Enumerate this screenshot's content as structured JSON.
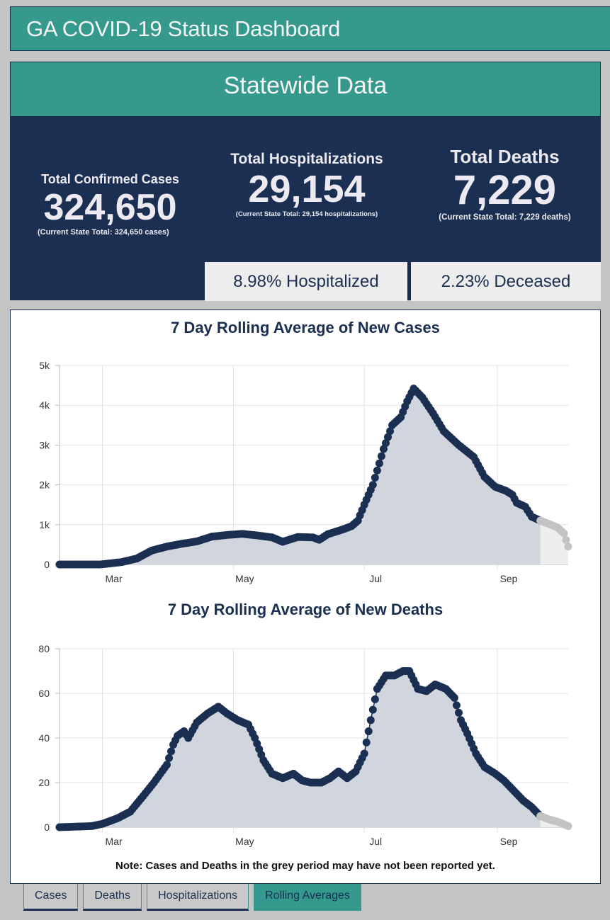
{
  "header": {
    "title": "GA COVID-19 Status Dashboard"
  },
  "statewide": {
    "title": "Statewide Data",
    "cases": {
      "label": "Total Confirmed Cases",
      "value": "324,650",
      "sub": "(Current State Total: 324,650 cases)"
    },
    "hospitalizations": {
      "label": "Total Hospitalizations",
      "value": "29,154",
      "sub": "(Current State Total: 29,154 hospitalizations)"
    },
    "deaths": {
      "label": "Total Deaths",
      "value": "7,229",
      "sub": "(Current State Total: 7,229 deaths)"
    },
    "pct_hospitalized": "8.98% Hospitalized",
    "pct_deceased": "2.23% Deceased"
  },
  "colors": {
    "teal": "#35998b",
    "navy": "#1b2f52",
    "area_fill": "#d1d5dd",
    "grey_points": "#c3c3c3",
    "grey_area": "#eeeeee"
  },
  "note": "Note: Cases and Deaths in the grey period may have not been reported yet.",
  "tabs": [
    {
      "label": "Cases",
      "active": false
    },
    {
      "label": "Deaths",
      "active": false
    },
    {
      "label": "Hospitalizations",
      "active": false
    },
    {
      "label": "Rolling Averages",
      "active": true
    }
  ],
  "chart_data": [
    {
      "type": "area",
      "title": "7 Day Rolling Average of New Cases",
      "xlabel": "",
      "ylabel": "",
      "x_range": [
        "2020-02-10",
        "2020-10-04"
      ],
      "ylim": [
        0,
        5000
      ],
      "y_ticks": [
        0,
        1000,
        2000,
        3000,
        4000,
        5000
      ],
      "y_tick_labels": [
        "0",
        "1k",
        "2k",
        "3k",
        "4k",
        "5k"
      ],
      "x_ticks": [
        "2020-03-01",
        "2020-05-01",
        "2020-07-01",
        "2020-09-01"
      ],
      "x_tick_labels": [
        "Mar",
        "May",
        "Jul",
        "Sep"
      ],
      "grid": true,
      "grey_period_start": "2020-09-21",
      "series": [
        {
          "name": "7 day rolling average of new cases",
          "points": [
            [
              "2020-02-10",
              0
            ],
            [
              "2020-02-29",
              0
            ],
            [
              "2020-03-10",
              60
            ],
            [
              "2020-03-17",
              150
            ],
            [
              "2020-03-24",
              350
            ],
            [
              "2020-03-31",
              450
            ],
            [
              "2020-04-07",
              520
            ],
            [
              "2020-04-14",
              580
            ],
            [
              "2020-04-21",
              700
            ],
            [
              "2020-04-28",
              740
            ],
            [
              "2020-05-05",
              770
            ],
            [
              "2020-05-12",
              730
            ],
            [
              "2020-05-19",
              680
            ],
            [
              "2020-05-24",
              570
            ],
            [
              "2020-05-31",
              690
            ],
            [
              "2020-06-07",
              680
            ],
            [
              "2020-06-10",
              620
            ],
            [
              "2020-06-14",
              760
            ],
            [
              "2020-06-21",
              880
            ],
            [
              "2020-06-25",
              960
            ],
            [
              "2020-06-28",
              1100
            ],
            [
              "2020-07-01",
              1500
            ],
            [
              "2020-07-05",
              2000
            ],
            [
              "2020-07-10",
              2900
            ],
            [
              "2020-07-14",
              3500
            ],
            [
              "2020-07-18",
              3700
            ],
            [
              "2020-07-21",
              4100
            ],
            [
              "2020-07-24",
              4420
            ],
            [
              "2020-07-28",
              4200
            ],
            [
              "2020-08-02",
              3800
            ],
            [
              "2020-08-07",
              3350
            ],
            [
              "2020-08-14",
              3000
            ],
            [
              "2020-08-21",
              2700
            ],
            [
              "2020-08-26",
              2200
            ],
            [
              "2020-08-31",
              1950
            ],
            [
              "2020-09-05",
              1850
            ],
            [
              "2020-09-08",
              1750
            ],
            [
              "2020-09-10",
              1550
            ],
            [
              "2020-09-14",
              1450
            ],
            [
              "2020-09-17",
              1200
            ],
            [
              "2020-09-21",
              1100
            ],
            [
              "2020-09-25",
              1020
            ],
            [
              "2020-09-29",
              930
            ],
            [
              "2020-10-02",
              780
            ],
            [
              "2020-10-04",
              450
            ]
          ]
        }
      ]
    },
    {
      "type": "area",
      "title": "7 Day Rolling Average of New Deaths",
      "xlabel": "",
      "ylabel": "",
      "x_range": [
        "2020-02-10",
        "2020-10-04"
      ],
      "ylim": [
        0,
        80
      ],
      "y_ticks": [
        0,
        20,
        40,
        60,
        80
      ],
      "y_tick_labels": [
        "0",
        "20",
        "40",
        "60",
        "80"
      ],
      "x_ticks": [
        "2020-03-01",
        "2020-05-01",
        "2020-07-01",
        "2020-09-01"
      ],
      "x_tick_labels": [
        "Mar",
        "May",
        "Jul",
        "Sep"
      ],
      "grid": true,
      "grey_period_start": "2020-09-21",
      "series": [
        {
          "name": "7 day rolling average of new deaths",
          "points": [
            [
              "2020-02-10",
              0
            ],
            [
              "2020-02-25",
              0.5
            ],
            [
              "2020-03-01",
              1.5
            ],
            [
              "2020-03-08",
              4
            ],
            [
              "2020-03-14",
              7
            ],
            [
              "2020-03-20",
              14
            ],
            [
              "2020-03-25",
              20
            ],
            [
              "2020-03-31",
              28
            ],
            [
              "2020-04-03",
              37
            ],
            [
              "2020-04-05",
              41
            ],
            [
              "2020-04-08",
              43
            ],
            [
              "2020-04-10",
              40
            ],
            [
              "2020-04-14",
              47
            ],
            [
              "2020-04-19",
              51
            ],
            [
              "2020-04-24",
              54
            ],
            [
              "2020-04-28",
              51
            ],
            [
              "2020-05-03",
              48
            ],
            [
              "2020-05-08",
              46
            ],
            [
              "2020-05-11",
              40
            ],
            [
              "2020-05-15",
              30
            ],
            [
              "2020-05-19",
              24
            ],
            [
              "2020-05-24",
              22
            ],
            [
              "2020-05-29",
              24
            ],
            [
              "2020-06-02",
              21
            ],
            [
              "2020-06-06",
              20
            ],
            [
              "2020-06-11",
              20
            ],
            [
              "2020-06-15",
              22
            ],
            [
              "2020-06-19",
              25
            ],
            [
              "2020-06-23",
              22
            ],
            [
              "2020-06-27",
              25
            ],
            [
              "2020-07-01",
              33
            ],
            [
              "2020-07-04",
              48
            ],
            [
              "2020-07-07",
              62
            ],
            [
              "2020-07-11",
              68
            ],
            [
              "2020-07-15",
              68
            ],
            [
              "2020-07-19",
              70
            ],
            [
              "2020-07-22",
              70
            ],
            [
              "2020-07-26",
              62
            ],
            [
              "2020-07-30",
              61
            ],
            [
              "2020-08-03",
              64
            ],
            [
              "2020-08-08",
              62
            ],
            [
              "2020-08-12",
              58
            ],
            [
              "2020-08-15",
              48
            ],
            [
              "2020-08-18",
              42
            ],
            [
              "2020-08-22",
              33
            ],
            [
              "2020-08-26",
              27
            ],
            [
              "2020-08-31",
              24
            ],
            [
              "2020-09-04",
              21
            ],
            [
              "2020-09-08",
              17
            ],
            [
              "2020-09-13",
              12
            ],
            [
              "2020-09-17",
              9
            ],
            [
              "2020-09-21",
              5
            ],
            [
              "2020-09-25",
              3.5
            ],
            [
              "2020-09-29",
              2.5
            ],
            [
              "2020-10-04",
              0.5
            ]
          ]
        }
      ]
    }
  ]
}
